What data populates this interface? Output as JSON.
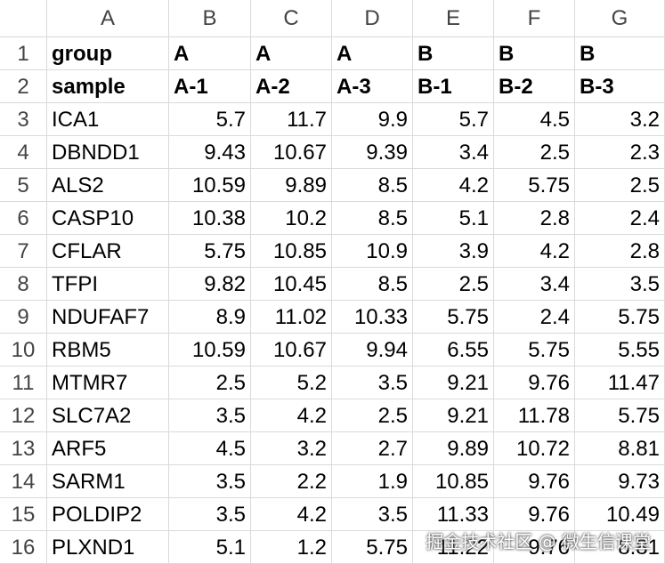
{
  "columns": [
    "A",
    "B",
    "C",
    "D",
    "E",
    "F",
    "G"
  ],
  "rows": [
    {
      "num": "1",
      "cells": [
        "group",
        "A",
        "A",
        "A",
        "B",
        "B",
        "B"
      ]
    },
    {
      "num": "2",
      "cells": [
        "sample",
        "A-1",
        "A-2",
        "A-3",
        "B-1",
        "B-2",
        "B-3"
      ]
    },
    {
      "num": "3",
      "cells": [
        "ICA1",
        "5.7",
        "11.7",
        "9.9",
        "5.7",
        "4.5",
        "3.2"
      ]
    },
    {
      "num": "4",
      "cells": [
        "DBNDD1",
        "9.43",
        "10.67",
        "9.39",
        "3.4",
        "2.5",
        "2.3"
      ]
    },
    {
      "num": "5",
      "cells": [
        "ALS2",
        "10.59",
        "9.89",
        "8.5",
        "4.2",
        "5.75",
        "2.5"
      ]
    },
    {
      "num": "6",
      "cells": [
        "CASP10",
        "10.38",
        "10.2",
        "8.5",
        "5.1",
        "2.8",
        "2.4"
      ]
    },
    {
      "num": "7",
      "cells": [
        "CFLAR",
        "5.75",
        "10.85",
        "10.9",
        "3.9",
        "4.2",
        "2.8"
      ]
    },
    {
      "num": "8",
      "cells": [
        "TFPI",
        "9.82",
        "10.45",
        "8.5",
        "2.5",
        "3.4",
        "3.5"
      ]
    },
    {
      "num": "9",
      "cells": [
        "NDUFAF7",
        "8.9",
        "11.02",
        "10.33",
        "5.75",
        "2.4",
        "5.75"
      ]
    },
    {
      "num": "10",
      "cells": [
        "RBM5",
        "10.59",
        "10.67",
        "9.94",
        "6.55",
        "5.75",
        "5.55"
      ]
    },
    {
      "num": "11",
      "cells": [
        "MTMR7",
        "2.5",
        "5.2",
        "3.5",
        "9.21",
        "9.76",
        "11.47"
      ]
    },
    {
      "num": "12",
      "cells": [
        "SLC7A2",
        "3.5",
        "4.2",
        "2.5",
        "9.21",
        "11.78",
        "5.75"
      ]
    },
    {
      "num": "13",
      "cells": [
        "ARF5",
        "4.5",
        "3.2",
        "2.7",
        "9.89",
        "10.72",
        "8.81"
      ]
    },
    {
      "num": "14",
      "cells": [
        "SARM1",
        "3.5",
        "2.2",
        "1.9",
        "10.85",
        "9.76",
        "9.73"
      ]
    },
    {
      "num": "15",
      "cells": [
        "POLDIP2",
        "3.5",
        "4.2",
        "3.5",
        "11.33",
        "9.76",
        "10.49"
      ]
    },
    {
      "num": "16",
      "cells": [
        "PLXND1",
        "5.1",
        "1.2",
        "5.75",
        "11.22",
        "9.76",
        "8.81"
      ]
    }
  ],
  "watermark": "掘金技术社区 @ 微生信课堂"
}
